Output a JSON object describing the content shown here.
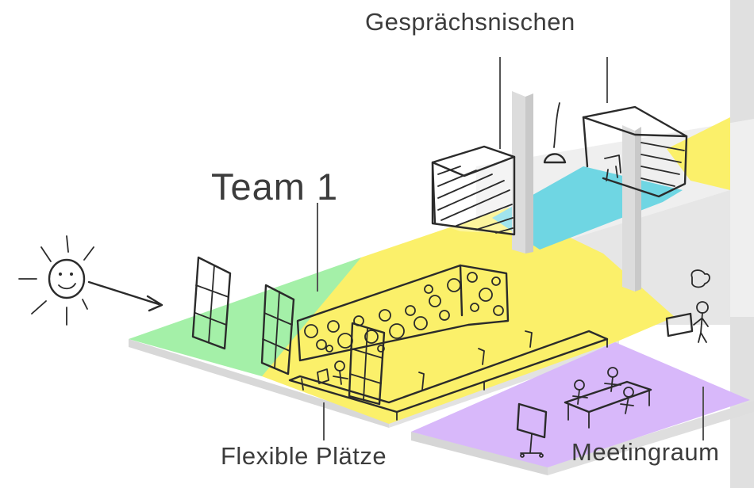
{
  "labels": {
    "conversation_niches": "Gesprächsnischen",
    "team": "Team 1",
    "flexible_seats": "Flexible Plätze",
    "meeting_room": "Meetingraum"
  },
  "colors": {
    "green_zone": "#a4f0a8",
    "yellow_zone": "#fbf06a",
    "cyan_zone": "#6fd6e3",
    "purple_zone": "#d8b8fa",
    "floor_gray": "#e9e9e9",
    "wall_gray": "#dcdcdc",
    "ink": "#2b2b2b"
  },
  "icons": [
    "sun-icon",
    "window-icon",
    "lamp-icon",
    "person-icon",
    "screen-icon",
    "thought-bubble-icon"
  ]
}
